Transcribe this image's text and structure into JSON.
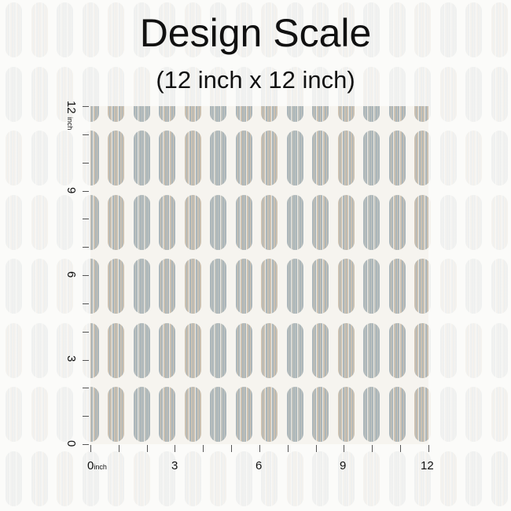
{
  "title": "Design Scale",
  "subtitle": "(12 inch x 12 inch)",
  "axis": {
    "unit": "inch",
    "y_labels": [
      "12",
      "9",
      "6",
      "3",
      "0"
    ],
    "x_labels": [
      "0",
      "3",
      "6",
      "9",
      "12"
    ]
  },
  "colors": {
    "blue_gray": "#9eabb1",
    "beige": "#c4b8a6",
    "background": "#fbfbf9"
  }
}
